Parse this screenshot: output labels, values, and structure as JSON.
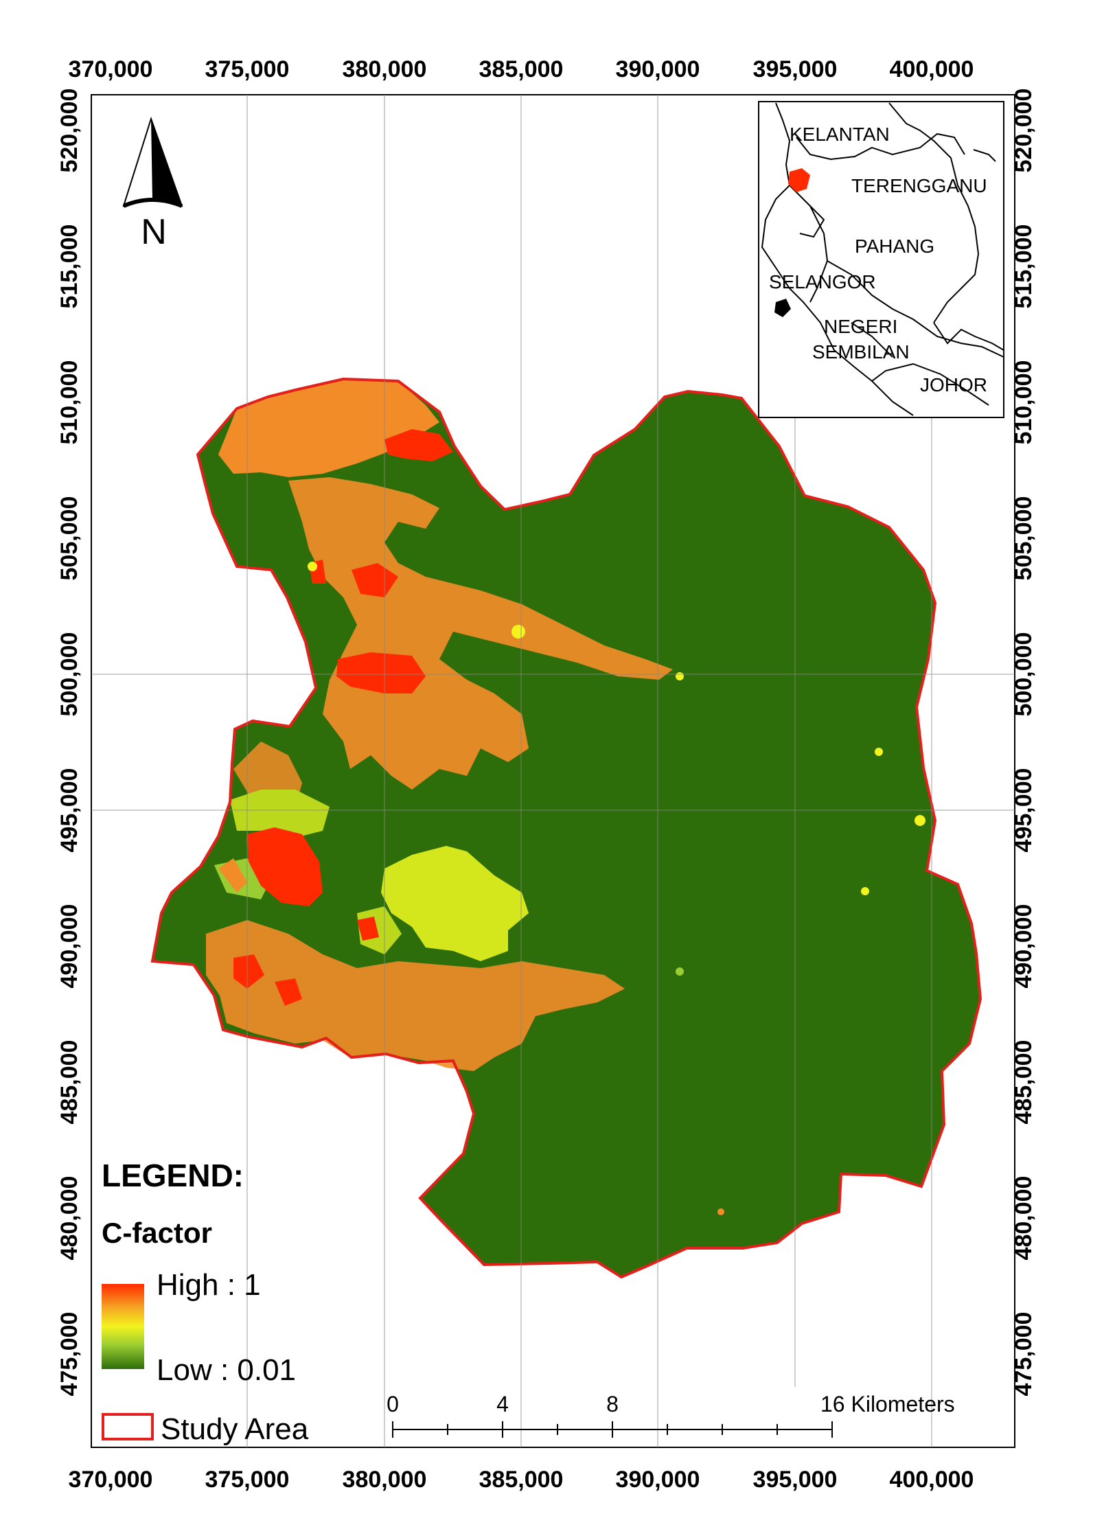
{
  "map": {
    "x_ticks": [
      "370,000",
      "375,000",
      "380,000",
      "385,000",
      "390,000",
      "395,000",
      "400,000"
    ],
    "y_ticks": [
      "520,000",
      "515,000",
      "510,000",
      "505,000",
      "500,000",
      "495,000",
      "490,000",
      "485,000",
      "480,000",
      "475,000"
    ],
    "north_label": "N",
    "colors": {
      "forest": "#2e6e0a",
      "high": "#ff2a00",
      "orange": "#f28c28",
      "yellow": "#e6ee22",
      "lime": "#bcd81c",
      "boundary": "#e3201b"
    }
  },
  "inset": {
    "labels": [
      "KELANTAN",
      "TERENGGANU",
      "PAHANG",
      "SELANGOR",
      "NEGERI",
      "SEMBILAN",
      "JOHOR"
    ]
  },
  "legend": {
    "title": "LEGEND:",
    "subtitle": "C-factor",
    "high_label": "High : 1",
    "low_label": "Low : 0.01",
    "boundary_label": "Study Area"
  },
  "scale_bar": {
    "labels": [
      "0",
      "4",
      "8",
      "16 Kilometers"
    ]
  }
}
